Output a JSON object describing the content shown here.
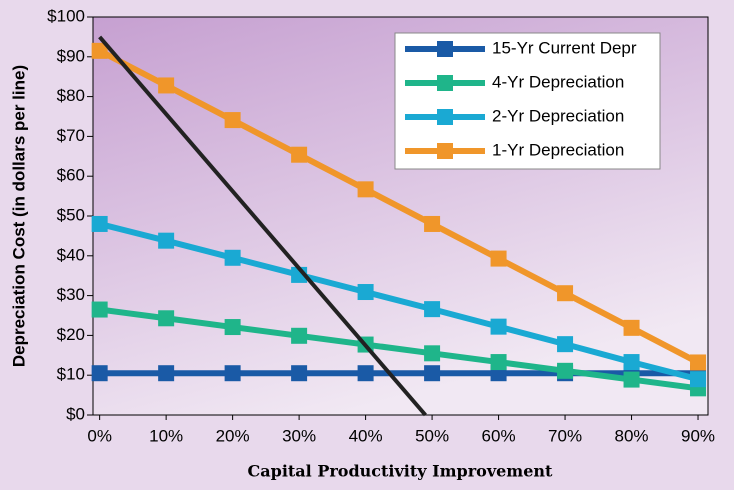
{
  "chart_data": {
    "type": "line",
    "x_label": "Capital Productivity Improvement",
    "y_label": "Depreciation Cost (in dollars per line)",
    "x": [
      0,
      10,
      20,
      30,
      40,
      50,
      60,
      70,
      80,
      90
    ],
    "xlim": [
      -1,
      91.5
    ],
    "xticks": [
      {
        "value": 0,
        "label": "0%"
      },
      {
        "value": 10,
        "label": "10%"
      },
      {
        "value": 20,
        "label": "20%"
      },
      {
        "value": 30,
        "label": "30%"
      },
      {
        "value": 40,
        "label": "40%"
      },
      {
        "value": 50,
        "label": "50%"
      },
      {
        "value": 60,
        "label": "60%"
      },
      {
        "value": 70,
        "label": "70%"
      },
      {
        "value": 80,
        "label": "80%"
      },
      {
        "value": 90,
        "label": "90%"
      }
    ],
    "ylim": [
      0,
      100
    ],
    "yticks": [
      {
        "value": 0,
        "label": "$0"
      },
      {
        "value": 10,
        "label": "$10"
      },
      {
        "value": 20,
        "label": "$20"
      },
      {
        "value": 30,
        "label": "$30"
      },
      {
        "value": 40,
        "label": "$40"
      },
      {
        "value": 50,
        "label": "$50"
      },
      {
        "value": 60,
        "label": "$60"
      },
      {
        "value": 70,
        "label": "$70"
      },
      {
        "value": 80,
        "label": "$80"
      },
      {
        "value": 90,
        "label": "$90"
      },
      {
        "value": 100,
        "label": "$100"
      }
    ],
    "legend": "upper right",
    "series": [
      {
        "name": "15-Yr Current Depr",
        "color": "#1a5aa6",
        "values": [
          10.5,
          10.5,
          10.5,
          10.5,
          10.5,
          10.5,
          10.5,
          10.5,
          10.5,
          10.5
        ]
      },
      {
        "name": "4-Yr Depreciation",
        "color": "#1fb58a",
        "values": [
          26.5,
          24.3,
          22.1,
          19.9,
          17.7,
          15.5,
          13.3,
          11.1,
          8.9,
          6.7
        ]
      },
      {
        "name": "2-Yr Depreciation",
        "color": "#1aa9d3",
        "values": [
          48,
          43.8,
          39.5,
          35.2,
          30.9,
          26.6,
          22.2,
          17.8,
          13.3,
          9
        ]
      },
      {
        "name": "1-Yr Depreciation",
        "color": "#f0962a",
        "values": [
          91.5,
          82.8,
          74.1,
          65.4,
          56.7,
          48,
          39.3,
          30.6,
          21.9,
          13.2
        ]
      }
    ],
    "reference_line": {
      "color": "#222222",
      "x": [
        0,
        49
      ],
      "values": [
        95,
        0
      ]
    }
  }
}
